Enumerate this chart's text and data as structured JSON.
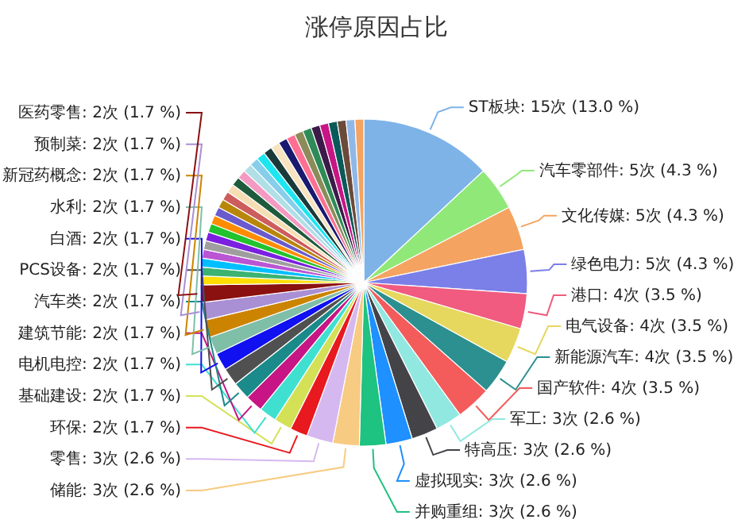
{
  "chart_data": {
    "type": "pie",
    "title": "涨停原因占比",
    "categories": [
      "ST板块",
      "汽车零部件",
      "文化传媒",
      "绿色电力",
      "港口",
      "电气设备",
      "新能源汽车",
      "国产软件",
      "军工",
      "特高压",
      "虚拟现实",
      "并购重组",
      "储能",
      "零售",
      "环保",
      "基础建设",
      "电机电控",
      "建筑节能",
      "汽车类",
      "PCS设备",
      "白酒",
      "水利",
      "新冠药概念",
      "预制菜",
      "医药零售",
      null,
      null,
      null,
      null,
      null,
      null,
      null,
      null,
      null,
      null,
      null,
      null,
      null,
      null,
      null,
      null,
      null,
      null,
      null,
      null,
      null,
      null,
      null,
      null,
      null,
      null,
      null,
      null,
      null
    ],
    "values": [
      15,
      5,
      5,
      5,
      4,
      4,
      4,
      4,
      3,
      3,
      3,
      3,
      3,
      3,
      2,
      2,
      2,
      2,
      2,
      2,
      2,
      2,
      2,
      2,
      2,
      1,
      1,
      1,
      1,
      1,
      1,
      1,
      1,
      1,
      1,
      1,
      1,
      1,
      1,
      1,
      1,
      1,
      1,
      1,
      1,
      1,
      1,
      1,
      1,
      1,
      1,
      1,
      1,
      1
    ],
    "value_labels": [
      "15次 (13.0 %)",
      "5次 (4.3 %)",
      "5次 (4.3 %)",
      "5次 (4.3 %)",
      "4次 (3.5 %)",
      "4次 (3.5 %)",
      "4次 (3.5 %)",
      "4次 (3.5 %)",
      "3次 (2.6 %)",
      "3次 (2.6 %)",
      "3次 (2.6 %)",
      "3次 (2.6 %)",
      "3次 (2.6 %)",
      "3次 (2.6 %)",
      "2次 (1.7 %)",
      "2次 (1.7 %)",
      "2次 (1.7 %)",
      "2次 (1.7 %)",
      "2次 (1.7 %)",
      "2次 (1.7 %)",
      "2次 (1.7 %)",
      "2次 (1.7 %)",
      "2次 (1.7 %)",
      "2次 (1.7 %)",
      "2次 (1.7 %)",
      null,
      null,
      null,
      null,
      null,
      null,
      null,
      null,
      null,
      null,
      null,
      null,
      null,
      null,
      null,
      null,
      null,
      null,
      null,
      null,
      null,
      null,
      null,
      null,
      null,
      null,
      null,
      null,
      null
    ],
    "colors": [
      "#7eb3e8",
      "#90e879",
      "#f4a460",
      "#7b7fe8",
      "#f05b7f",
      "#e6d85e",
      "#2b908f",
      "#f45b5b",
      "#91e8e1",
      "#434348",
      "#1e90ff",
      "#1ec281",
      "#f7cb82",
      "#d6b8f0",
      "#e8191f",
      "#d4e157",
      "#40e0d0",
      "#c71585",
      "#1a8a8a",
      "#505050",
      "#1010f0",
      "#7fbfa8",
      "#cc8400",
      "#a98fd4",
      "#8b1010",
      "#ffde00",
      "#3cb371",
      "#00bfff",
      "#ba55d3",
      "#9e9e9e",
      "#7b1fe0",
      "#22c32e",
      "#ff8c00",
      "#6a5acd",
      "#b8860b",
      "#cd5c5c",
      "#f5deb3",
      "#1e5b3c",
      "#f49ac2",
      "#b0e0e6",
      "#87ceeb",
      "#1ee6f0",
      "#1a3a3a",
      "#f7e3c0",
      "#191970",
      "#ff6f91",
      "#8c8c5a",
      "#2e8b57",
      "#3d1a4a",
      "#c71585",
      "#0b5a5a",
      "#6b4a3a",
      "#8fb8e8",
      "#f4a460"
    ]
  }
}
